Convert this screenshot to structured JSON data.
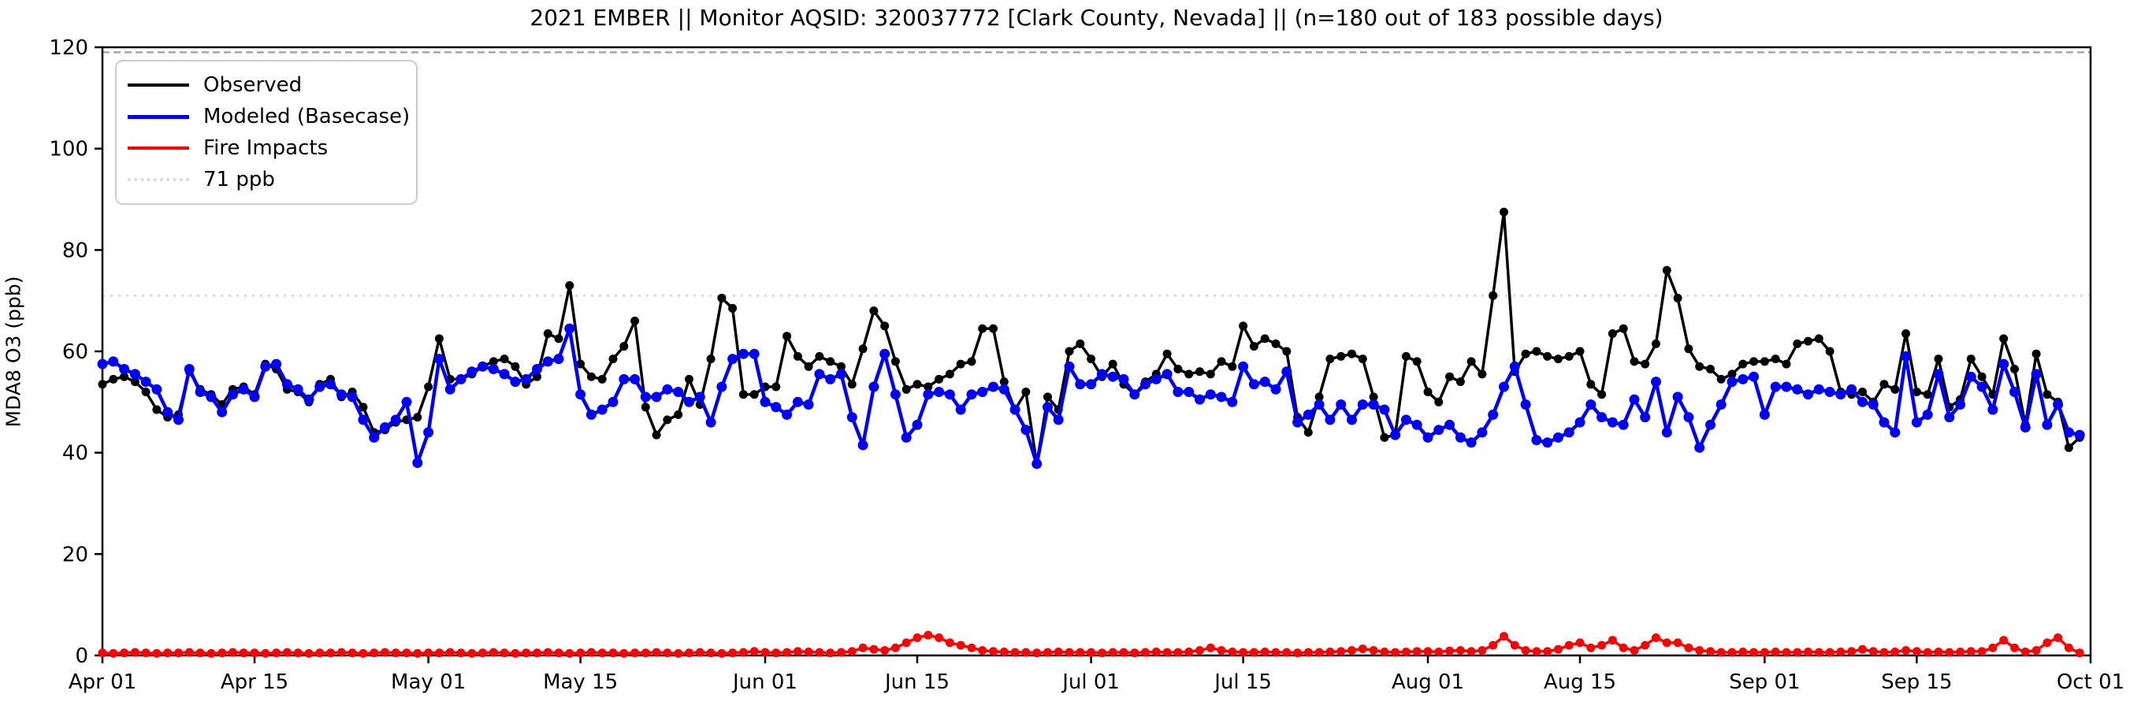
{
  "title": "2021 EMBER || Monitor AQSID: 320037772 [Clark County, Nevada] || (n=180 out of 183 possible days)",
  "chart_data": {
    "type": "line",
    "title": "2021 EMBER || Monitor AQSID: 320037772 [Clark County, Nevada] || (n=180 out of 183 possible days)",
    "xlabel": "",
    "ylabel": "MDA8 O3 (ppb)",
    "ylim": [
      0,
      120
    ],
    "yticks": [
      0,
      20,
      40,
      60,
      80,
      100,
      120
    ],
    "x_unit": "days since Apr 01 (0) through Oct 01 (183), daily values Apr 01 - Sep 30",
    "xticks": [
      {
        "label": "Apr 01",
        "day": 0
      },
      {
        "label": "Apr 15",
        "day": 14
      },
      {
        "label": "May 01",
        "day": 30
      },
      {
        "label": "May 15",
        "day": 44
      },
      {
        "label": "Jun 01",
        "day": 61
      },
      {
        "label": "Jun 15",
        "day": 75
      },
      {
        "label": "Jul 01",
        "day": 91
      },
      {
        "label": "Jul 15",
        "day": 105
      },
      {
        "label": "Aug 01",
        "day": 122
      },
      {
        "label": "Aug 15",
        "day": 136
      },
      {
        "label": "Sep 01",
        "day": 153
      },
      {
        "label": "Sep 15",
        "day": 167
      },
      {
        "label": "Oct 01",
        "day": 183
      }
    ],
    "grid": false,
    "legend_position": "upper left",
    "thresholds": [
      {
        "label": "71 ppb",
        "value": 71,
        "color": "#d9d9d9",
        "style": "dotted"
      },
      {
        "label": "",
        "value": 119,
        "color": "#a6a6a6",
        "style": "dashed"
      }
    ],
    "series": [
      {
        "name": "Observed",
        "color": "#000000",
        "values": [
          53.5,
          54.5,
          55,
          54,
          52,
          48.5,
          47,
          47.5,
          56,
          52.5,
          51.5,
          49.5,
          52.5,
          53,
          51.5,
          57.5,
          56.5,
          52.5,
          52,
          50,
          53.5,
          54.5,
          51,
          52,
          49,
          44,
          44.5,
          46,
          46.5,
          47,
          53,
          62.5,
          54.5,
          54.5,
          55.5,
          57,
          58,
          58.5,
          57,
          53.5,
          55,
          63.5,
          62.5,
          73,
          57.5,
          55,
          54.5,
          58.5,
          61,
          66,
          49,
          43.5,
          46.5,
          47.5,
          54.5,
          49.5,
          58.5,
          70.5,
          68.5,
          51.5,
          51.5,
          53,
          53,
          63,
          59,
          57,
          59,
          58,
          57,
          53.5,
          60.5,
          68,
          65,
          58,
          52.5,
          53.5,
          53,
          54.5,
          55.5,
          57.5,
          58,
          64.5,
          64.5,
          54,
          48.5,
          52,
          37.8,
          51,
          48.5,
          60,
          61.5,
          58.5,
          55,
          57.5,
          53.5,
          51.5,
          54,
          55.5,
          59.5,
          56.5,
          55.5,
          56,
          55.5,
          58,
          57,
          65,
          61,
          62.5,
          61.5,
          60,
          47,
          44,
          51,
          58.5,
          59,
          59.5,
          58.5,
          51,
          43,
          43.5,
          59,
          58,
          52,
          50,
          55,
          54,
          58,
          55.5,
          71,
          87.5,
          56,
          59.5,
          60,
          59,
          58.5,
          59,
          60,
          53.5,
          51.5,
          63.5,
          64.5,
          58,
          57.5,
          61.5,
          76,
          70.5,
          60.5,
          57,
          56.5,
          54.5,
          55.5,
          57.5,
          58,
          58,
          58.5,
          57.5,
          61.5,
          62,
          62.5,
          60,
          52,
          51.5,
          52,
          50,
          53.5,
          52.5,
          63.5,
          52,
          51.5,
          58.5,
          49,
          50.5,
          58.5,
          55,
          51.5,
          62.5,
          56.5,
          45.5,
          59.5,
          51.5,
          50,
          41,
          43
        ]
      },
      {
        "name": "Modeled (Basecase)",
        "color": "#0000ff",
        "values": [
          57.5,
          58,
          56.5,
          55.5,
          54,
          52.5,
          48,
          46.5,
          56.5,
          52,
          51,
          48,
          51.5,
          52.5,
          51,
          57,
          57.5,
          53.5,
          52.5,
          50.5,
          53,
          53.5,
          51.5,
          51,
          46.5,
          43,
          45,
          46.5,
          50,
          38,
          44,
          58.5,
          52.5,
          54.5,
          56,
          57,
          56.5,
          55.5,
          54,
          54.5,
          56.5,
          58,
          58.5,
          64.5,
          51.5,
          47.5,
          48.5,
          50,
          54.5,
          54.5,
          51,
          51,
          52.5,
          52,
          50,
          51,
          46,
          53,
          58.5,
          59.5,
          59.5,
          50,
          49,
          47.5,
          50,
          49.5,
          55.5,
          54.5,
          55.5,
          47,
          41.5,
          53,
          59.5,
          51.5,
          43,
          45.5,
          51.5,
          52,
          51.5,
          48.5,
          51.5,
          52,
          53,
          52.5,
          48.5,
          44.5,
          37.8,
          49,
          46.5,
          57,
          53.5,
          53.5,
          55.5,
          55,
          54.5,
          51.5,
          53.5,
          54.5,
          55.5,
          52,
          52,
          50.5,
          51.5,
          51,
          50,
          57,
          53.5,
          54,
          52.5,
          56,
          46,
          47.5,
          49.5,
          46.5,
          49.5,
          46.5,
          49.5,
          49.5,
          48.5,
          43.5,
          46.5,
          45.5,
          43,
          44.5,
          45.5,
          43,
          42,
          44,
          47.5,
          53,
          57,
          49.5,
          42.5,
          42,
          43,
          44,
          46,
          49.5,
          47,
          46,
          45.5,
          50.5,
          47,
          54,
          44,
          51,
          47,
          41,
          45.5,
          49.5,
          54,
          54.5,
          55,
          47.5,
          53,
          53,
          52.5,
          51.5,
          52.5,
          52,
          51.5,
          52.5,
          50,
          49.5,
          46,
          44,
          59,
          46,
          47.5,
          55.5,
          47,
          49.5,
          55,
          53,
          48.5,
          57.5,
          52,
          45,
          55.5,
          45.5,
          49.5,
          44,
          43.5
        ]
      },
      {
        "name": "Fire Impacts",
        "color": "#ff0000",
        "values": [
          0.5,
          0.4,
          0.5,
          0.6,
          0.5,
          0.4,
          0.5,
          0.5,
          0.6,
          0.5,
          0.4,
          0.5,
          0.6,
          0.5,
          0.5,
          0.4,
          0.5,
          0.6,
          0.5,
          0.4,
          0.5,
          0.5,
          0.6,
          0.5,
          0.4,
          0.5,
          0.6,
          0.5,
          0.5,
          0.4,
          0.5,
          0.5,
          0.6,
          0.5,
          0.4,
          0.5,
          0.6,
          0.5,
          0.4,
          0.5,
          0.5,
          0.6,
          0.5,
          0.4,
          0.5,
          0.6,
          0.5,
          0.5,
          0.4,
          0.5,
          0.5,
          0.6,
          0.5,
          0.4,
          0.5,
          0.6,
          0.5,
          0.4,
          0.5,
          0.6,
          0.8,
          0.6,
          0.5,
          0.6,
          0.8,
          0.7,
          0.6,
          0.5,
          0.6,
          0.8,
          1.5,
          1.2,
          1.0,
          1.5,
          2.5,
          3.5,
          4.0,
          3.5,
          2.5,
          2.0,
          1.5,
          1.0,
          0.8,
          0.7,
          0.6,
          0.6,
          0.5,
          0.6,
          0.7,
          0.6,
          0.6,
          0.6,
          0.5,
          0.6,
          0.6,
          0.5,
          0.6,
          0.7,
          0.6,
          0.6,
          0.7,
          1.0,
          1.5,
          1.0,
          0.7,
          0.6,
          0.6,
          0.7,
          0.6,
          0.6,
          0.5,
          0.6,
          0.6,
          0.7,
          0.8,
          1.0,
          1.3,
          1.0,
          0.7,
          0.6,
          0.7,
          0.8,
          0.8,
          0.7,
          0.9,
          1.0,
          0.8,
          1.0,
          2.0,
          3.8,
          2.0,
          1.0,
          0.8,
          0.8,
          1.2,
          2.0,
          2.5,
          1.5,
          2.0,
          3.0,
          1.5,
          1.0,
          2.0,
          3.5,
          2.5,
          2.5,
          1.5,
          1.0,
          0.8,
          0.6,
          0.6,
          0.7,
          0.6,
          0.6,
          0.7,
          0.6,
          0.6,
          0.7,
          0.6,
          0.6,
          0.7,
          0.8,
          1.2,
          0.8,
          0.6,
          0.7,
          1.0,
          0.8,
          0.6,
          0.7,
          0.6,
          0.7,
          0.8,
          0.8,
          1.5,
          3.0,
          1.5,
          0.7,
          1.0,
          2.5,
          3.5,
          1.5,
          0.5
        ]
      }
    ]
  },
  "legend": {
    "items": [
      {
        "label": "Observed"
      },
      {
        "label": "Modeled (Basecase)"
      },
      {
        "label": "Fire Impacts"
      },
      {
        "label": "71 ppb"
      }
    ]
  }
}
